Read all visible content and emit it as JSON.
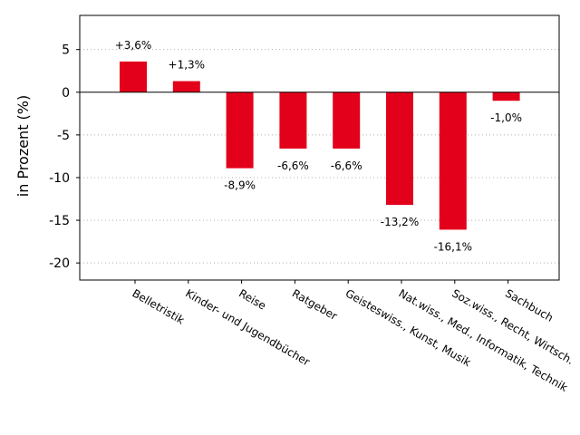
{
  "chart_data": {
    "type": "bar",
    "title": "",
    "xlabel": "",
    "ylabel": "in Prozent (%)",
    "ylim": [
      -22,
      9
    ],
    "yticks": [
      5,
      0,
      -5,
      -10,
      -15,
      -20
    ],
    "ytick_labels": [
      "5",
      "0",
      "-5",
      "-10",
      "-15",
      "-20"
    ],
    "grid": "horizontal dotted",
    "bar_color": "#e2001a",
    "categories": [
      "Belletristik",
      "Kinder- und Jugendbücher",
      "Reise",
      "Ratgeber",
      "Geisteswiss., Kunst, Musik",
      "Nat.wiss., Med., Informatik, Technik",
      "Soz.wiss., Recht, Wirtsch.",
      "Sachbuch"
    ],
    "values": [
      3.6,
      1.3,
      -8.9,
      -6.6,
      -6.6,
      -13.2,
      -16.1,
      -1.0
    ],
    "value_labels": [
      "+3,6%",
      "+1,3%",
      "-8,9%",
      "-6,6%",
      "-6,6%",
      "-13,2%",
      "-16,1%",
      "-1,0%"
    ]
  }
}
